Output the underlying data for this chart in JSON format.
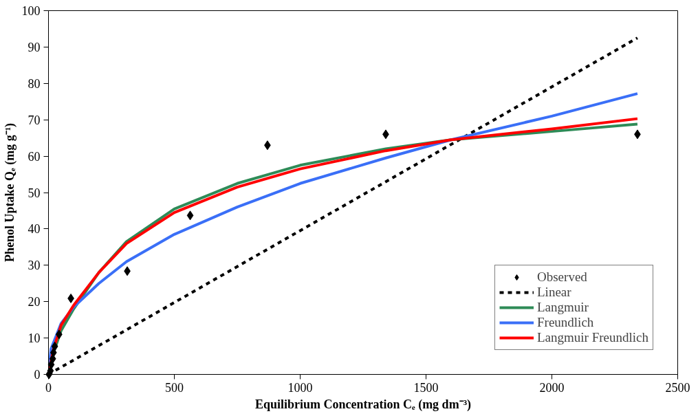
{
  "chart_data": {
    "type": "line",
    "xlabel": "Equilibrium Concentration Cₑ (mg dm⁻³)",
    "ylabel": "Phenol Uptake Qₑ (mg g⁻¹)",
    "xlim": [
      0,
      2500
    ],
    "ylim": [
      0,
      100
    ],
    "xticks": [
      0,
      500,
      1000,
      1500,
      2000,
      2500
    ],
    "yticks": [
      0,
      10,
      20,
      30,
      40,
      50,
      60,
      70,
      80,
      90,
      100
    ],
    "grid": false,
    "legend": "bottom right",
    "series": [
      {
        "name": "Observed",
        "type": "scatter",
        "marker": "diamond",
        "color": "#000000",
        "x": [
          2,
          8,
          11,
          17,
          20,
          25,
          42,
          89,
          313,
          563,
          870,
          1340,
          2340
        ],
        "values": [
          0,
          1,
          2.7,
          4.3,
          6,
          7.7,
          11,
          20.9,
          28.4,
          43.7,
          63,
          66,
          66
        ]
      },
      {
        "name": "Linear",
        "line_style": "dashed",
        "color": "#000000",
        "x": [
          0,
          2340
        ],
        "values": [
          0,
          92.5
        ]
      },
      {
        "name": "Langmuir",
        "line_style": "solid",
        "color": "#2e8b57",
        "x": [
          0,
          20,
          50,
          100,
          200,
          310,
          500,
          750,
          1000,
          1340,
          1600,
          2000,
          2340
        ],
        "values": [
          0,
          6,
          12,
          18,
          28,
          36.5,
          45.5,
          52.5,
          57.5,
          62,
          64.5,
          66.8,
          68.8
        ]
      },
      {
        "name": "Freundlich",
        "line_style": "solid",
        "color": "#3a6ff7",
        "x": [
          0,
          10,
          50,
          100,
          200,
          310,
          500,
          750,
          1000,
          1340,
          1600,
          2000,
          2340
        ],
        "values": [
          0,
          7,
          14,
          18.5,
          25,
          31,
          38.5,
          46,
          52.5,
          59.5,
          64.5,
          71,
          77.2
        ]
      },
      {
        "name": "Langmuir Freundlich",
        "line_style": "solid",
        "color": "#ff0000",
        "x": [
          0,
          20,
          50,
          100,
          200,
          310,
          500,
          750,
          1000,
          1340,
          1600,
          2000,
          2340
        ],
        "values": [
          0,
          7,
          13.5,
          19,
          28,
          36,
          44.5,
          51.5,
          56.5,
          61.5,
          64.5,
          67.5,
          70.3
        ]
      }
    ]
  }
}
